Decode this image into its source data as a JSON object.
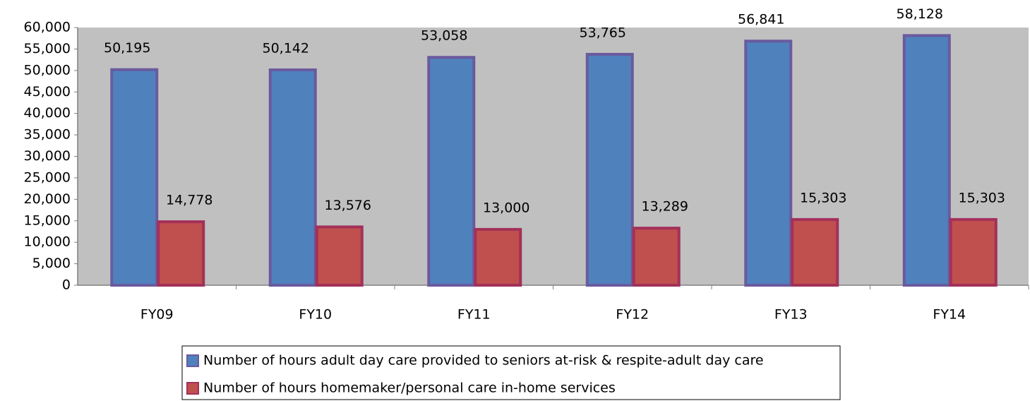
{
  "chart_data": {
    "type": "bar",
    "categories": [
      "FY09",
      "FY10",
      "FY11",
      "FY12",
      "FY13",
      "FY14"
    ],
    "series": [
      {
        "name": "Number of hours adult day care provided to seniors at-risk & respite-adult day care",
        "color": "#4f81bd",
        "values": [
          50195,
          50142,
          53058,
          53765,
          56841,
          58128
        ],
        "value_labels": [
          "50,195",
          "50,142",
          "53,058",
          "53,765",
          "56,841",
          "58,128"
        ]
      },
      {
        "name": "Number of hours homemaker/personal care in-home services",
        "color": "#c0504d",
        "values": [
          14778,
          13576,
          13000,
          13289,
          15303,
          15303
        ],
        "value_labels": [
          "14,778",
          "13,576",
          "13,000",
          "13,289",
          "15,303",
          "15,303"
        ]
      }
    ],
    "ylim": [
      0,
      60000
    ],
    "yticks": [
      0,
      {
        "value": 5000,
        "label": "5,000"
      },
      {
        "value": 10000,
        "label": "10,000"
      },
      {
        "value": 15000,
        "label": "15,000"
      },
      {
        "value": 20000,
        "label": "20,000"
      },
      {
        "value": 25000,
        "label": "25,000"
      },
      {
        "value": 30000,
        "label": "30,000"
      },
      {
        "value": 35000,
        "label": "35,000"
      },
      {
        "value": 40000,
        "label": "40,000"
      },
      {
        "value": 45000,
        "label": "45,000"
      },
      {
        "value": 50000,
        "label": "50,000"
      },
      {
        "value": 55000,
        "label": "55,000"
      },
      {
        "value": 60000,
        "label": "60,000"
      }
    ],
    "grid": false,
    "legend": "bottom"
  }
}
